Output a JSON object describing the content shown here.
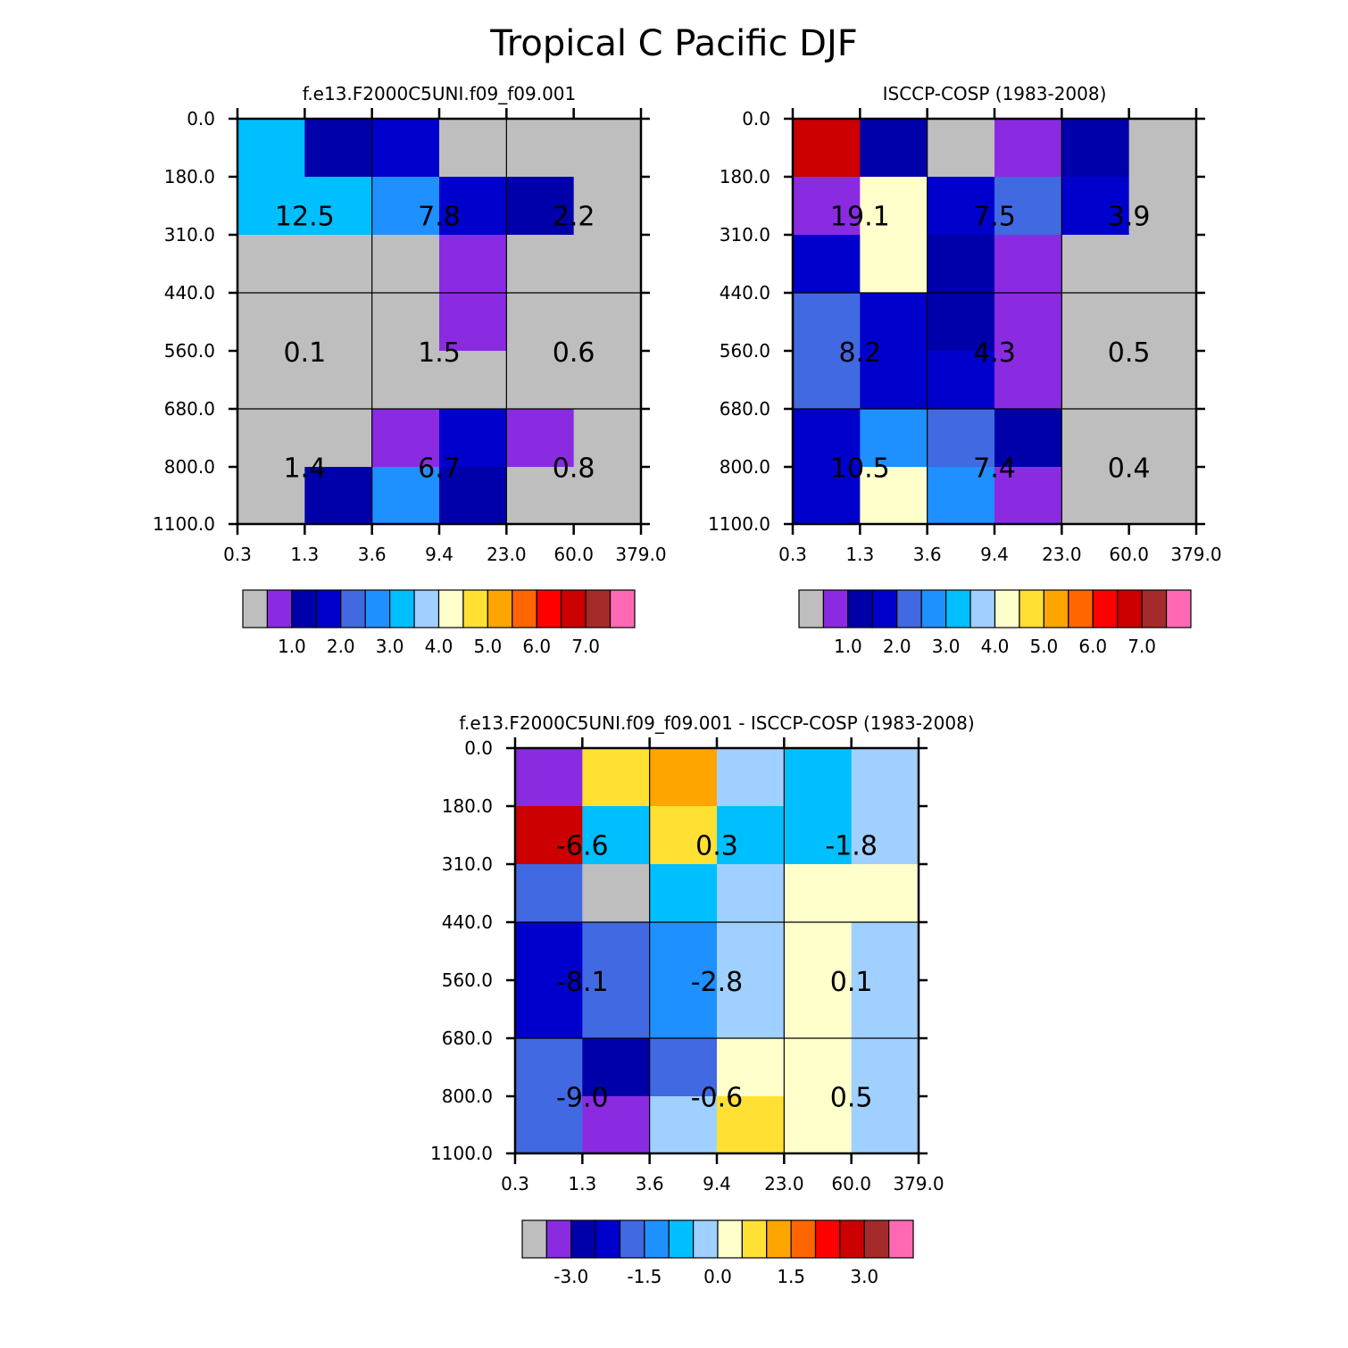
{
  "suptitle": "Tropical C Pacific DJF",
  "chart_data": [
    {
      "type": "heatmap",
      "title": "f.e13.F2000C5UNI.f09_f09.001",
      "x_tick_labels": [
        "0.3",
        "1.3",
        "3.6",
        "9.4",
        "23.0",
        "60.0",
        "379.0"
      ],
      "y_tick_labels": [
        "0.0",
        "180.0",
        "310.0",
        "440.0",
        "560.0",
        "680.0",
        "800.0",
        "1100.0"
      ],
      "cell_colors": [
        [
          "#00BFFF",
          "#0000AA",
          "#0000CD",
          "#BEBEBE",
          "#BEBEBE",
          "#BEBEBE"
        ],
        [
          "#00BFFF",
          "#00BFFF",
          "#1E90FF",
          "#0000CD",
          "#0000AA",
          "#BEBEBE"
        ],
        [
          "#BEBEBE",
          "#BEBEBE",
          "#BEBEBE",
          "#8A2BE2",
          "#BEBEBE",
          "#BEBEBE"
        ],
        [
          "#BEBEBE",
          "#BEBEBE",
          "#BEBEBE",
          "#8A2BE2",
          "#BEBEBE",
          "#BEBEBE"
        ],
        [
          "#BEBEBE",
          "#BEBEBE",
          "#BEBEBE",
          "#BEBEBE",
          "#BEBEBE",
          "#BEBEBE"
        ],
        [
          "#BEBEBE",
          "#BEBEBE",
          "#8A2BE2",
          "#0000CD",
          "#8A2BE2",
          "#BEBEBE"
        ],
        [
          "#BEBEBE",
          "#0000AA",
          "#1E90FF",
          "#0000AA",
          "#BEBEBE",
          "#BEBEBE"
        ]
      ],
      "block_labels": [
        [
          "12.5",
          "7.8",
          "2.2"
        ],
        [
          "0.1",
          "1.5",
          "0.6"
        ],
        [
          "1.4",
          "6.7",
          "0.8"
        ]
      ],
      "colorbar": {
        "colors": [
          "#BEBEBE",
          "#8A2BE2",
          "#0000AA",
          "#0000CD",
          "#4169E1",
          "#1E90FF",
          "#00BFFF",
          "#A0D0FF",
          "#FFFFCC",
          "#FFE033",
          "#FFA500",
          "#FF6600",
          "#FF0000",
          "#CC0000",
          "#A52A2A",
          "#FF69B4"
        ],
        "tick_labels": [
          "1.0",
          "2.0",
          "3.0",
          "4.0",
          "5.0",
          "6.0",
          "7.0"
        ]
      }
    },
    {
      "type": "heatmap",
      "title": "ISCCP-COSP (1983-2008)",
      "x_tick_labels": [
        "0.3",
        "1.3",
        "3.6",
        "9.4",
        "23.0",
        "60.0",
        "379.0"
      ],
      "y_tick_labels": [
        "0.0",
        "180.0",
        "310.0",
        "440.0",
        "560.0",
        "680.0",
        "800.0",
        "1100.0"
      ],
      "cell_colors": [
        [
          "#CC0000",
          "#0000AA",
          "#BEBEBE",
          "#8A2BE2",
          "#0000AA",
          "#BEBEBE"
        ],
        [
          "#8A2BE2",
          "#FFFFCC",
          "#0000CD",
          "#4169E1",
          "#0000CD",
          "#BEBEBE"
        ],
        [
          "#0000CD",
          "#FFFFCC",
          "#0000AA",
          "#8A2BE2",
          "#BEBEBE",
          "#BEBEBE"
        ],
        [
          "#4169E1",
          "#0000CD",
          "#0000AA",
          "#8A2BE2",
          "#BEBEBE",
          "#BEBEBE"
        ],
        [
          "#4169E1",
          "#0000CD",
          "#0000CD",
          "#8A2BE2",
          "#BEBEBE",
          "#BEBEBE"
        ],
        [
          "#0000CD",
          "#1E90FF",
          "#4169E1",
          "#0000AA",
          "#BEBEBE",
          "#BEBEBE"
        ],
        [
          "#0000CD",
          "#FFFFCC",
          "#1E90FF",
          "#8A2BE2",
          "#BEBEBE",
          "#BEBEBE"
        ]
      ],
      "block_labels": [
        [
          "19.1",
          "7.5",
          "3.9"
        ],
        [
          "8.2",
          "4.3",
          "0.5"
        ],
        [
          "10.5",
          "7.4",
          "0.4"
        ]
      ],
      "colorbar": {
        "colors": [
          "#BEBEBE",
          "#8A2BE2",
          "#0000AA",
          "#0000CD",
          "#4169E1",
          "#1E90FF",
          "#00BFFF",
          "#A0D0FF",
          "#FFFFCC",
          "#FFE033",
          "#FFA500",
          "#FF6600",
          "#FF0000",
          "#CC0000",
          "#A52A2A",
          "#FF69B4"
        ],
        "tick_labels": [
          "1.0",
          "2.0",
          "3.0",
          "4.0",
          "5.0",
          "6.0",
          "7.0"
        ]
      }
    },
    {
      "type": "heatmap",
      "title": "f.e13.F2000C5UNI.f09_f09.001 - ISCCP-COSP (1983-2008)",
      "x_tick_labels": [
        "0.3",
        "1.3",
        "3.6",
        "9.4",
        "23.0",
        "60.0",
        "379.0"
      ],
      "y_tick_labels": [
        "0.0",
        "180.0",
        "310.0",
        "440.0",
        "560.0",
        "680.0",
        "800.0",
        "1100.0"
      ],
      "cell_colors": [
        [
          "#8A2BE2",
          "#FFE033",
          "#FFA500",
          "#A0D0FF",
          "#00BFFF",
          "#A0D0FF"
        ],
        [
          "#CC0000",
          "#00BFFF",
          "#FFE033",
          "#00BFFF",
          "#00BFFF",
          "#A0D0FF"
        ],
        [
          "#4169E1",
          "#BEBEBE",
          "#00BFFF",
          "#A0D0FF",
          "#FFFFCC",
          "#FFFFCC"
        ],
        [
          "#0000CD",
          "#4169E1",
          "#1E90FF",
          "#A0D0FF",
          "#FFFFCC",
          "#A0D0FF"
        ],
        [
          "#0000CD",
          "#4169E1",
          "#1E90FF",
          "#A0D0FF",
          "#FFFFCC",
          "#A0D0FF"
        ],
        [
          "#4169E1",
          "#0000AA",
          "#4169E1",
          "#FFFFCC",
          "#FFFFCC",
          "#A0D0FF"
        ],
        [
          "#4169E1",
          "#8A2BE2",
          "#A0D0FF",
          "#FFE033",
          "#FFFFCC",
          "#A0D0FF"
        ]
      ],
      "block_labels": [
        [
          "-6.6",
          "0.3",
          "-1.8"
        ],
        [
          "-8.1",
          "-2.8",
          "0.1"
        ],
        [
          "-9.0",
          "-0.6",
          "0.5"
        ]
      ],
      "colorbar": {
        "colors": [
          "#BEBEBE",
          "#8A2BE2",
          "#0000AA",
          "#0000CD",
          "#4169E1",
          "#1E90FF",
          "#00BFFF",
          "#A0D0FF",
          "#FFFFCC",
          "#FFE033",
          "#FFA500",
          "#FF6600",
          "#FF0000",
          "#CC0000",
          "#A52A2A",
          "#FF69B4"
        ],
        "tick_labels": [
          "-3.0",
          "-1.5",
          "0.0",
          "1.5",
          "3.0"
        ]
      }
    }
  ]
}
